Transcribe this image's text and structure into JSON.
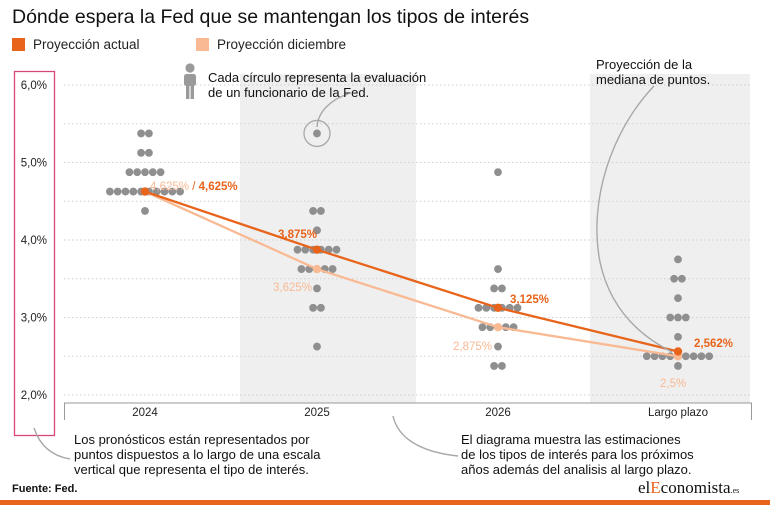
{
  "title": "Dónde espera la Fed que se mantengan los tipos de interés",
  "legend": {
    "actual": "Proyección actual",
    "december": "Proyección diciembre"
  },
  "colors": {
    "actual": "#e8641b",
    "december": "#f9b993",
    "dots": "#8f8f8f",
    "band": "#efefef",
    "axis_box": "#d9477a"
  },
  "annotations": {
    "dot_meaning_l1": "Cada círculo representa la evaluación",
    "dot_meaning_l2": "de un funcionario de la Fed.",
    "median_l1": "Proyección de la",
    "median_l2": "mediana de puntos.",
    "axis_l1": "Los pronósticos están representados por",
    "axis_l2": "puntos dispuestos a lo largo de una escala",
    "axis_l3": "vertical que representa el tipo de interés.",
    "diagram_l1": "El diagrama muestra las estimaciones",
    "diagram_l2": "de los tipos de interés para los próximos",
    "diagram_l3": "años además del analisis al largo plazo."
  },
  "source": "Fuente: Fed.",
  "brand": {
    "pre": "el",
    "e": "E",
    "rest": "conomista",
    "suffix": ".es"
  },
  "chart_data": {
    "type": "scatter",
    "title": "Dónde espera la Fed que se mantengan los tipos de interés",
    "categories": [
      "2024",
      "2025",
      "2026",
      "Largo plazo"
    ],
    "y_ticks": [
      "2,0%",
      "3,0%",
      "4,0%",
      "5,0%",
      "6,0%"
    ],
    "ylim": [
      2.0,
      6.0
    ],
    "grid": true,
    "legend_position": "top-left",
    "dots": [
      {
        "category": "2024",
        "levels": [
          [
            5.375,
            2
          ],
          [
            5.125,
            2
          ],
          [
            4.875,
            5
          ],
          [
            4.625,
            10
          ],
          [
            4.375,
            1
          ]
        ]
      },
      {
        "category": "2025",
        "levels": [
          [
            5.375,
            1
          ],
          [
            4.375,
            2
          ],
          [
            4.125,
            1
          ],
          [
            3.875,
            6
          ],
          [
            3.625,
            5
          ],
          [
            3.375,
            1
          ],
          [
            3.125,
            2
          ],
          [
            2.625,
            1
          ]
        ]
      },
      {
        "category": "2026",
        "levels": [
          [
            4.875,
            1
          ],
          [
            3.625,
            1
          ],
          [
            3.375,
            2
          ],
          [
            3.125,
            6
          ],
          [
            2.875,
            5
          ],
          [
            2.625,
            1
          ],
          [
            2.375,
            2
          ]
        ]
      },
      {
        "category": "Largo plazo",
        "levels": [
          [
            3.75,
            1
          ],
          [
            3.5,
            2
          ],
          [
            3.25,
            1
          ],
          [
            3.0,
            3
          ],
          [
            2.75,
            1
          ],
          [
            2.5,
            9
          ],
          [
            2.375,
            1
          ]
        ]
      }
    ],
    "series": [
      {
        "name": "Proyección actual",
        "values": [
          4.625,
          3.875,
          3.125,
          2.562
        ],
        "labels": [
          "4,625%",
          "3,875%",
          "3,125%",
          "2,562%"
        ]
      },
      {
        "name": "Proyección diciembre",
        "values": [
          4.625,
          3.625,
          2.875,
          2.5
        ],
        "labels": [
          "4,625%",
          "3,625%",
          "2,875%",
          "2,5%"
        ]
      }
    ],
    "label_separator": " / "
  }
}
